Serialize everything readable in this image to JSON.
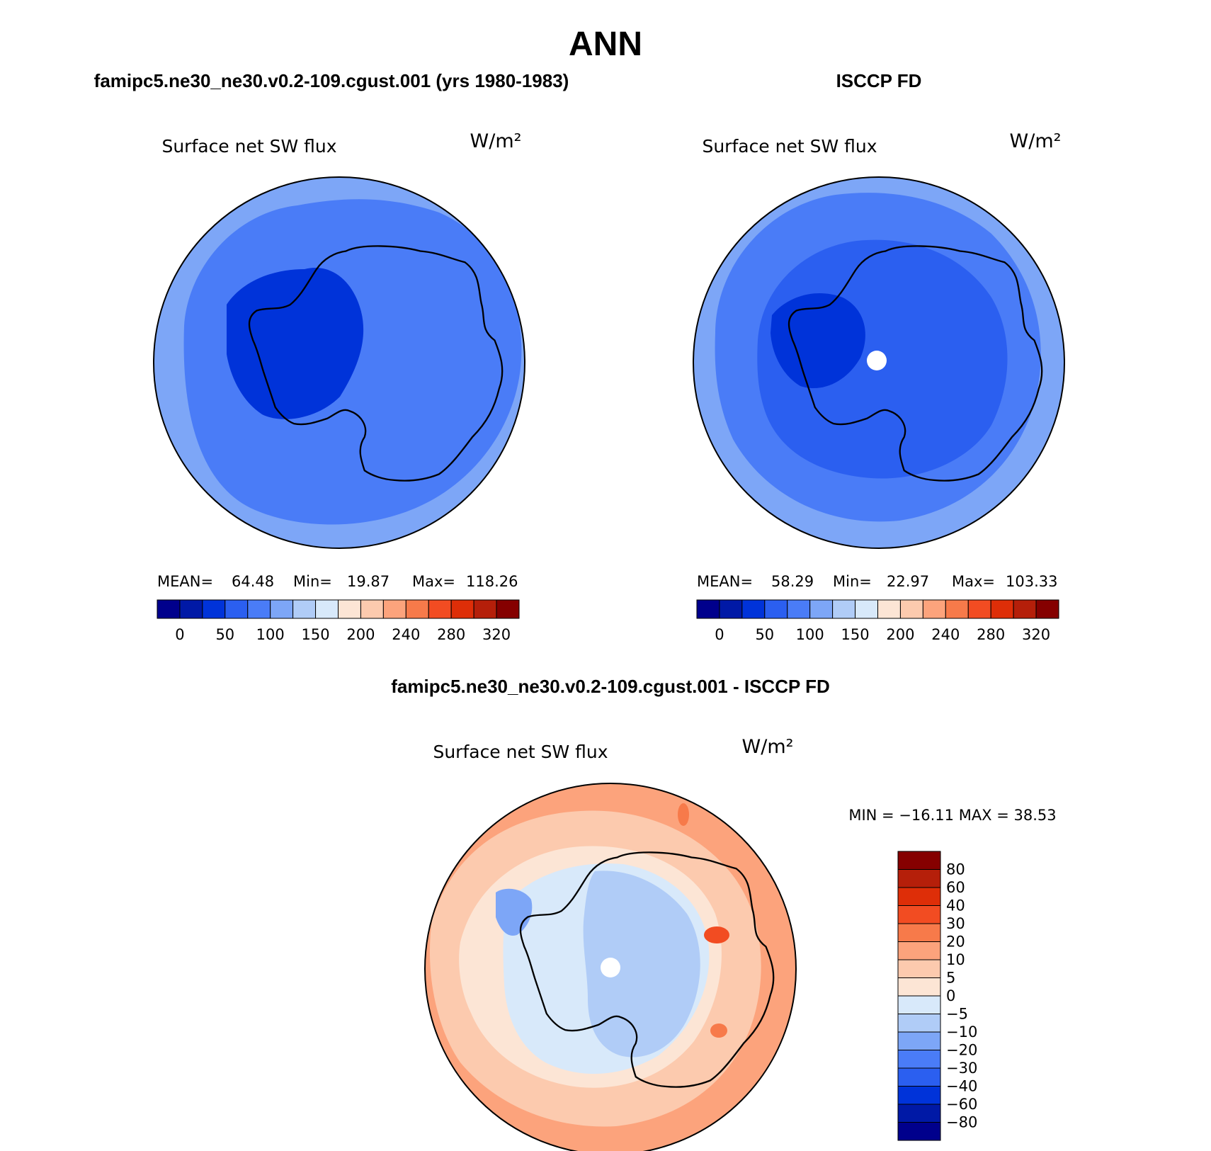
{
  "figure": {
    "title": "ANN",
    "units": "W/m²"
  },
  "colors": {
    "pos_ramp": [
      "#00008c",
      "#0019a6",
      "#0033d9",
      "#2b5ff0",
      "#4a7cf7",
      "#7da6f7",
      "#b0ccf7",
      "#d8e9fa",
      "#fce5d5",
      "#fccaae",
      "#fca37c",
      "#f77a4a",
      "#f24c22",
      "#de2e08",
      "#b51f0a",
      "#850000"
    ],
    "diff_ramp": [
      "#00008c",
      "#0019a6",
      "#0033d9",
      "#2b5ff0",
      "#4a7cf7",
      "#7da6f7",
      "#b0ccf7",
      "#d8e9fa",
      "#fce5d5",
      "#fccaae",
      "#fca37c",
      "#f77a4a",
      "#f24c22",
      "#de2e08",
      "#b51f0a",
      "#850000"
    ]
  },
  "chart_data": [
    {
      "type": "heatmap",
      "panel": "model",
      "title": "famipc5.ne30_ne30.v0.2-109.cgust.001 (yrs 1980-1983)",
      "variable_label": "Surface net SW flux",
      "units": "W/m²",
      "stats": {
        "mean_label": "MEAN=",
        "mean": "64.48",
        "min_label": "Min=",
        "min": "19.87",
        "max_label": "Max=",
        "max": "118.26"
      },
      "colorbar_ticks": [
        "0",
        "50",
        "100",
        "150",
        "200",
        "240",
        "280",
        "320"
      ],
      "contour_levels": [
        0,
        25,
        50,
        75,
        100,
        125,
        150,
        175,
        200,
        220,
        240,
        260,
        280,
        300,
        320
      ],
      "fields": {
        "outer_ring": 110,
        "mid_ring": 95,
        "inner_ring": 75,
        "coastal": 55,
        "continent": 45,
        "west_antarctica": 30
      }
    },
    {
      "type": "heatmap",
      "panel": "obs",
      "title": "ISCCP FD",
      "variable_label": "Surface net SW flux",
      "units": "W/m²",
      "stats": {
        "mean_label": "MEAN=",
        "mean": "58.29",
        "min_label": "Min=",
        "min": "22.97",
        "max_label": "Max=",
        "max": "103.33"
      },
      "colorbar_ticks": [
        "0",
        "50",
        "100",
        "150",
        "200",
        "240",
        "280",
        "320"
      ],
      "contour_levels": [
        0,
        25,
        50,
        75,
        100,
        125,
        150,
        175,
        200,
        220,
        240,
        260,
        280,
        300,
        320
      ],
      "fields": {
        "outer_ring": 100,
        "mid_ring": 90,
        "inner_ring": 70,
        "coastal": 50,
        "continent": 50,
        "west_antarctica": 40
      }
    },
    {
      "type": "heatmap",
      "panel": "difference",
      "title": "famipc5.ne30_ne30.v0.2-109.cgust.001 - ISCCP FD",
      "variable_label": "Surface net SW flux",
      "units": "W/m²",
      "stats_text": "MIN = −16.11 MAX =   38.53",
      "colorbar_ticks": [
        "80",
        "60",
        "40",
        "30",
        "20",
        "10",
        "5",
        "0",
        "−5",
        "−10",
        "−20",
        "−30",
        "−40",
        "−60",
        "−80"
      ],
      "contour_levels": [
        -80,
        -60,
        -40,
        -30,
        -20,
        -10,
        -5,
        0,
        5,
        10,
        20,
        30,
        40,
        60,
        80
      ],
      "fields": {
        "outer_ring": 12,
        "mid_ring": 6,
        "inner_ring": 3,
        "coastal": -3,
        "continent": -7,
        "peninsula": -12
      }
    }
  ]
}
